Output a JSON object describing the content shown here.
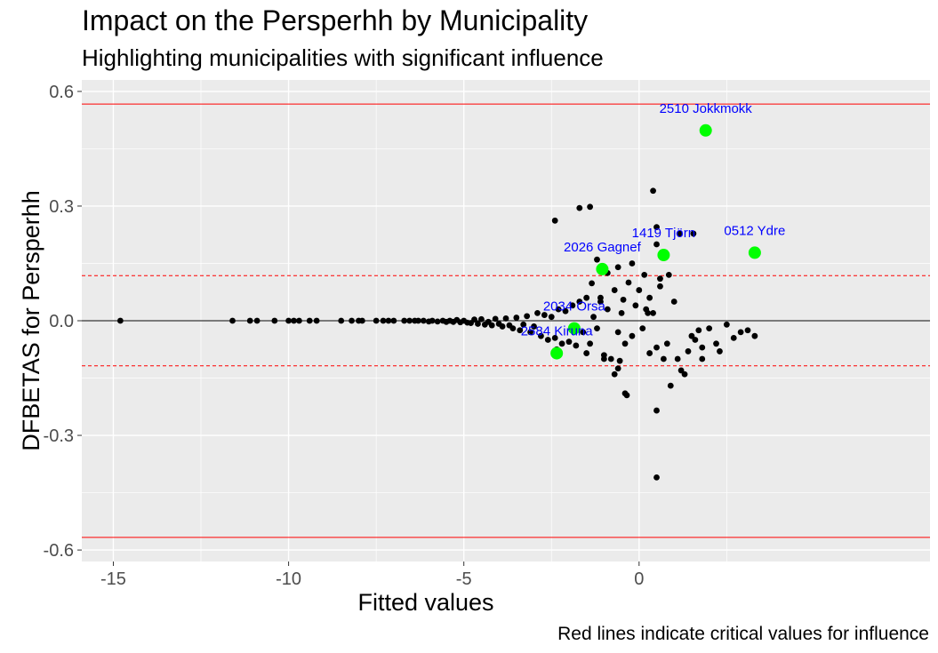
{
  "chart_data": {
    "type": "scatter",
    "title": "Impact on the Persperhh by Municipality",
    "subtitle": "Highlighting municipalities with significant influence",
    "xlabel": "Fitted values",
    "ylabel": "DFBETAS for Persperhh",
    "caption": "Red lines indicate critical values for influence",
    "xlim": [
      -15.9,
      8.3
    ],
    "ylim": [
      -0.63,
      0.63
    ],
    "x_ticks": [
      -15,
      -10,
      -5,
      0
    ],
    "x_tick_labels": [
      "-15",
      "-10",
      "-5",
      "0"
    ],
    "y_ticks": [
      -0.6,
      -0.3,
      0.0,
      0.3,
      0.6
    ],
    "y_tick_labels": [
      "-0.6",
      "-0.3",
      "0.0",
      "0.3",
      "0.6"
    ],
    "grid": true,
    "reference_lines": {
      "zero": {
        "y": 0,
        "color": "#000000",
        "style": "solid"
      },
      "critical_solid": {
        "y": [
          0.567,
          -0.567
        ],
        "color": "#ff0000",
        "style": "solid"
      },
      "critical_dashed": {
        "y": [
          0.118,
          -0.118
        ],
        "color": "#ff0000",
        "style": "dashed"
      }
    },
    "colors": {
      "panel": "#ebebeb",
      "grid": "#ffffff",
      "points": "#000000",
      "highlight": "#00ff00",
      "labels": "#0000ff"
    },
    "highlighted": [
      {
        "label": "2510 Jokkmokk",
        "x": 1.9,
        "y": 0.498
      },
      {
        "label": "0512 Ydre",
        "x": 3.3,
        "y": 0.178
      },
      {
        "label": "1419 Tjörn",
        "x": 0.7,
        "y": 0.172
      },
      {
        "label": "2026 Gagnef",
        "x": -1.05,
        "y": 0.135
      },
      {
        "label": "2034 Orsa",
        "x": -1.85,
        "y": -0.02
      },
      {
        "label": "2584 Kiruna",
        "x": -2.35,
        "y": -0.085
      }
    ],
    "points": [
      {
        "x": -14.8,
        "y": 0.0
      },
      {
        "x": -11.6,
        "y": 0.0
      },
      {
        "x": -11.1,
        "y": 0.0
      },
      {
        "x": -10.9,
        "y": 0.0
      },
      {
        "x": -10.4,
        "y": 0.0
      },
      {
        "x": -10.0,
        "y": 0.0
      },
      {
        "x": -9.85,
        "y": 0.0
      },
      {
        "x": -9.7,
        "y": 0.0
      },
      {
        "x": -9.4,
        "y": 0.0
      },
      {
        "x": -9.2,
        "y": 0.0
      },
      {
        "x": -8.5,
        "y": 0.0
      },
      {
        "x": -8.2,
        "y": 0.0
      },
      {
        "x": -8.0,
        "y": 0.0
      },
      {
        "x": -7.9,
        "y": 0.0
      },
      {
        "x": -7.5,
        "y": 0.0
      },
      {
        "x": -7.3,
        "y": 0.0
      },
      {
        "x": -7.15,
        "y": 0.0
      },
      {
        "x": -7.0,
        "y": 0.0
      },
      {
        "x": -6.7,
        "y": 0.0
      },
      {
        "x": -6.55,
        "y": 0.0
      },
      {
        "x": -6.4,
        "y": 0.0
      },
      {
        "x": -6.3,
        "y": 0.0
      },
      {
        "x": -6.15,
        "y": 0.0
      },
      {
        "x": -6.0,
        "y": -0.002
      },
      {
        "x": -5.9,
        "y": 0.0
      },
      {
        "x": -5.75,
        "y": -0.002
      },
      {
        "x": -5.6,
        "y": 0.0
      },
      {
        "x": -5.5,
        "y": -0.003
      },
      {
        "x": -5.4,
        "y": 0.0
      },
      {
        "x": -5.3,
        "y": -0.003
      },
      {
        "x": -5.2,
        "y": 0.002
      },
      {
        "x": -5.1,
        "y": -0.004
      },
      {
        "x": -5.0,
        "y": 0.0
      },
      {
        "x": -4.9,
        "y": -0.005
      },
      {
        "x": -4.8,
        "y": -0.006
      },
      {
        "x": -4.7,
        "y": 0.003
      },
      {
        "x": -4.6,
        "y": -0.008
      },
      {
        "x": -4.5,
        "y": 0.004
      },
      {
        "x": -4.4,
        "y": -0.01
      },
      {
        "x": -4.3,
        "y": -0.003
      },
      {
        "x": -4.2,
        "y": -0.012
      },
      {
        "x": -4.1,
        "y": 0.005
      },
      {
        "x": -4.0,
        "y": -0.008
      },
      {
        "x": -3.9,
        "y": -0.015
      },
      {
        "x": -3.8,
        "y": 0.006
      },
      {
        "x": -3.7,
        "y": -0.012
      },
      {
        "x": -3.6,
        "y": -0.02
      },
      {
        "x": -3.5,
        "y": 0.008
      },
      {
        "x": -3.4,
        "y": -0.025
      },
      {
        "x": -3.3,
        "y": -0.01
      },
      {
        "x": -3.2,
        "y": 0.012
      },
      {
        "x": -3.1,
        "y": -0.03
      },
      {
        "x": -3.0,
        "y": -0.015
      },
      {
        "x": -2.9,
        "y": 0.02
      },
      {
        "x": -2.8,
        "y": -0.04
      },
      {
        "x": -2.7,
        "y": 0.015
      },
      {
        "x": -2.6,
        "y": -0.05
      },
      {
        "x": -2.5,
        "y": 0.01
      },
      {
        "x": -2.4,
        "y": -0.045
      },
      {
        "x": -2.3,
        "y": 0.03
      },
      {
        "x": -2.2,
        "y": -0.06
      },
      {
        "x": -2.1,
        "y": 0.025
      },
      {
        "x": -2.0,
        "y": -0.055
      },
      {
        "x": -1.9,
        "y": 0.04
      },
      {
        "x": -1.8,
        "y": -0.065
      },
      {
        "x": -1.7,
        "y": 0.05
      },
      {
        "x": -1.6,
        "y": -0.03
      },
      {
        "x": -1.5,
        "y": 0.06
      },
      {
        "x": -1.4,
        "y": -0.06
      },
      {
        "x": -1.3,
        "y": 0.01
      },
      {
        "x": -1.2,
        "y": -0.02
      },
      {
        "x": -1.1,
        "y": 0.05
      },
      {
        "x": -1.0,
        "y": -0.09
      },
      {
        "x": -0.9,
        "y": 0.03
      },
      {
        "x": -0.8,
        "y": -0.1
      },
      {
        "x": -0.7,
        "y": 0.08
      },
      {
        "x": -0.6,
        "y": -0.03
      },
      {
        "x": -0.5,
        "y": 0.02
      },
      {
        "x": -0.4,
        "y": -0.06
      },
      {
        "x": -0.3,
        "y": 0.1
      },
      {
        "x": -0.2,
        "y": -0.04
      },
      {
        "x": -0.1,
        "y": 0.04
      },
      {
        "x": 0.0,
        "y": 0.08
      },
      {
        "x": 0.1,
        "y": -0.02
      },
      {
        "x": 0.2,
        "y": 0.03
      },
      {
        "x": 0.3,
        "y": 0.06
      },
      {
        "x": 0.4,
        "y": 0.02
      },
      {
        "x": 0.5,
        "y": -0.07
      },
      {
        "x": 0.6,
        "y": 0.09
      },
      {
        "x": 0.8,
        "y": -0.06
      },
      {
        "x": 0.9,
        "y": -0.17
      },
      {
        "x": 1.0,
        "y": 0.05
      },
      {
        "x": 1.1,
        "y": -0.1
      },
      {
        "x": 1.2,
        "y": -0.13
      },
      {
        "x": 1.3,
        "y": -0.14
      },
      {
        "x": 1.4,
        "y": -0.08
      },
      {
        "x": 1.5,
        "y": -0.04
      },
      {
        "x": 1.6,
        "y": -0.05
      },
      {
        "x": 1.7,
        "y": -0.025
      },
      {
        "x": 1.8,
        "y": -0.07
      },
      {
        "x": 2.0,
        "y": -0.02
      },
      {
        "x": 2.2,
        "y": -0.06
      },
      {
        "x": 2.3,
        "y": -0.08
      },
      {
        "x": 2.5,
        "y": -0.01
      },
      {
        "x": 2.7,
        "y": -0.045
      },
      {
        "x": 2.9,
        "y": -0.03
      },
      {
        "x": 3.1,
        "y": -0.025
      },
      {
        "x": 3.3,
        "y": -0.04
      },
      {
        "x": -2.4,
        "y": 0.262
      },
      {
        "x": -1.7,
        "y": 0.295
      },
      {
        "x": -1.4,
        "y": 0.298
      },
      {
        "x": -1.2,
        "y": 0.16
      },
      {
        "x": -0.9,
        "y": 0.125
      },
      {
        "x": -0.6,
        "y": 0.14
      },
      {
        "x": -0.2,
        "y": 0.15
      },
      {
        "x": -1.35,
        "y": 0.098
      },
      {
        "x": 0.4,
        "y": 0.34
      },
      {
        "x": 0.5,
        "y": 0.245
      },
      {
        "x": 0.5,
        "y": 0.2
      },
      {
        "x": 1.15,
        "y": 0.228
      },
      {
        "x": 1.55,
        "y": 0.228
      },
      {
        "x": -1.1,
        "y": 0.06
      },
      {
        "x": -0.45,
        "y": 0.055
      },
      {
        "x": 0.15,
        "y": 0.12
      },
      {
        "x": 0.6,
        "y": 0.11
      },
      {
        "x": 0.85,
        "y": 0.12
      },
      {
        "x": -0.35,
        "y": -0.195
      },
      {
        "x": -0.4,
        "y": -0.19
      },
      {
        "x": 0.5,
        "y": -0.235
      },
      {
        "x": 0.5,
        "y": -0.41
      },
      {
        "x": -0.7,
        "y": -0.14
      },
      {
        "x": -0.6,
        "y": -0.125
      },
      {
        "x": -1.0,
        "y": -0.1
      },
      {
        "x": -0.55,
        "y": -0.105
      },
      {
        "x": 0.3,
        "y": -0.085
      },
      {
        "x": 0.7,
        "y": -0.1
      },
      {
        "x": -2.35,
        "y": -0.075
      },
      {
        "x": -1.5,
        "y": -0.085
      },
      {
        "x": 1.8,
        "y": -0.1
      },
      {
        "x": 0.25,
        "y": 0.02
      }
    ]
  }
}
